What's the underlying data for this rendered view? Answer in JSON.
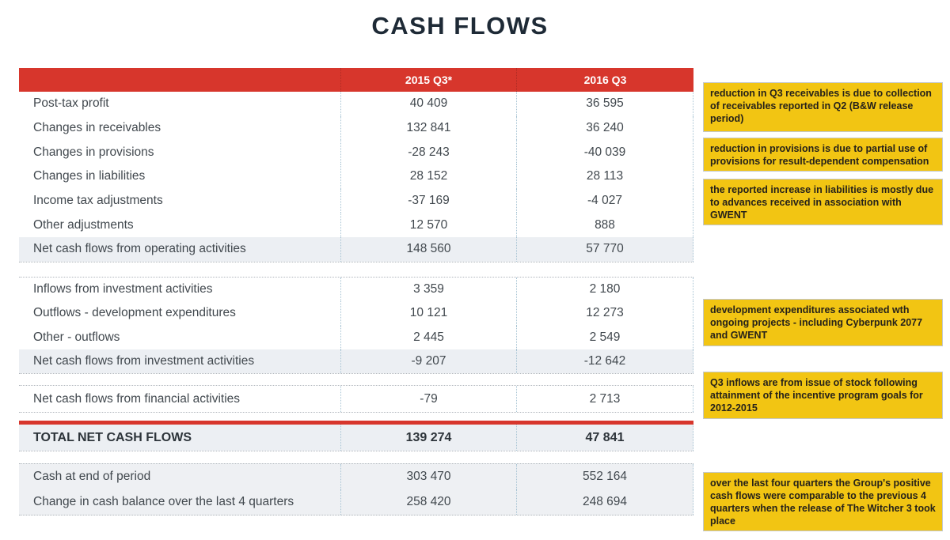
{
  "title": "CASH FLOWS",
  "colors": {
    "accent_red": "#d7362c",
    "note_yellow": "#f2c513",
    "highlight_row": "#eceff3",
    "title_navy": "#1e2a36"
  },
  "table": {
    "columns": {
      "col2015": "2015 Q3*",
      "col2016": "2016 Q3"
    },
    "operating": [
      {
        "label": "Post-tax profit",
        "y2015": "40 409",
        "y2016": "36 595"
      },
      {
        "label": "Changes in receivables",
        "y2015": "132 841",
        "y2016": "36 240"
      },
      {
        "label": "Changes in provisions",
        "y2015": "-28 243",
        "y2016": "-40 039"
      },
      {
        "label": "Changes in liabilities",
        "y2015": "28 152",
        "y2016": "28 113"
      },
      {
        "label": "Income tax adjustments",
        "y2015": "-37 169",
        "y2016": "-4 027"
      },
      {
        "label": "Other adjustments",
        "y2015": "12 570",
        "y2016": "888"
      },
      {
        "label": "Net cash flows from operating activities",
        "y2015": "148 560",
        "y2016": "57 770"
      }
    ],
    "investment": [
      {
        "label": "Inflows from investment activities",
        "y2015": "3 359",
        "y2016": "2 180"
      },
      {
        "label": "Outflows - development expenditures",
        "y2015": "10 121",
        "y2016": "12 273"
      },
      {
        "label": "Other - outflows",
        "y2015": "2 445",
        "y2016": "2 549"
      },
      {
        "label": "Net cash flows from investment activities",
        "y2015": "-9 207",
        "y2016": "-12 642"
      }
    ],
    "financial": [
      {
        "label": "Net cash flows from financial activities",
        "y2015": "-79",
        "y2016": "2 713"
      }
    ],
    "total": {
      "label": "TOTAL NET CASH FLOWS",
      "y2015": "139 274",
      "y2016": "47 841"
    },
    "cash": [
      {
        "label": "Cash at end of period",
        "y2015": "303 470",
        "y2016": "552 164"
      },
      {
        "label": "Change in cash balance over the last 4 quarters",
        "y2015": "258 420",
        "y2016": "248 694"
      }
    ]
  },
  "notes": [
    {
      "text": "reduction in Q3 receivables is due to collection of receivables reported in Q2 (B&W release period)"
    },
    {
      "text": "reduction in provisions is due to partial use of provisions for result-dependent compensation"
    },
    {
      "text": "the reported increase in liabilities is mostly due to advances received in association with GWENT"
    },
    {
      "text": "development expenditures associated wth ongoing projects - including Cyberpunk 2077 and GWENT"
    },
    {
      "text": "Q3 inflows are from issue of stock following attainment of the incentive program goals for 2012-2015"
    },
    {
      "text": "over the last four quarters the Group's positive cash flows were comparable to the previous 4 quarters when the release of The Witcher 3 took place"
    }
  ]
}
